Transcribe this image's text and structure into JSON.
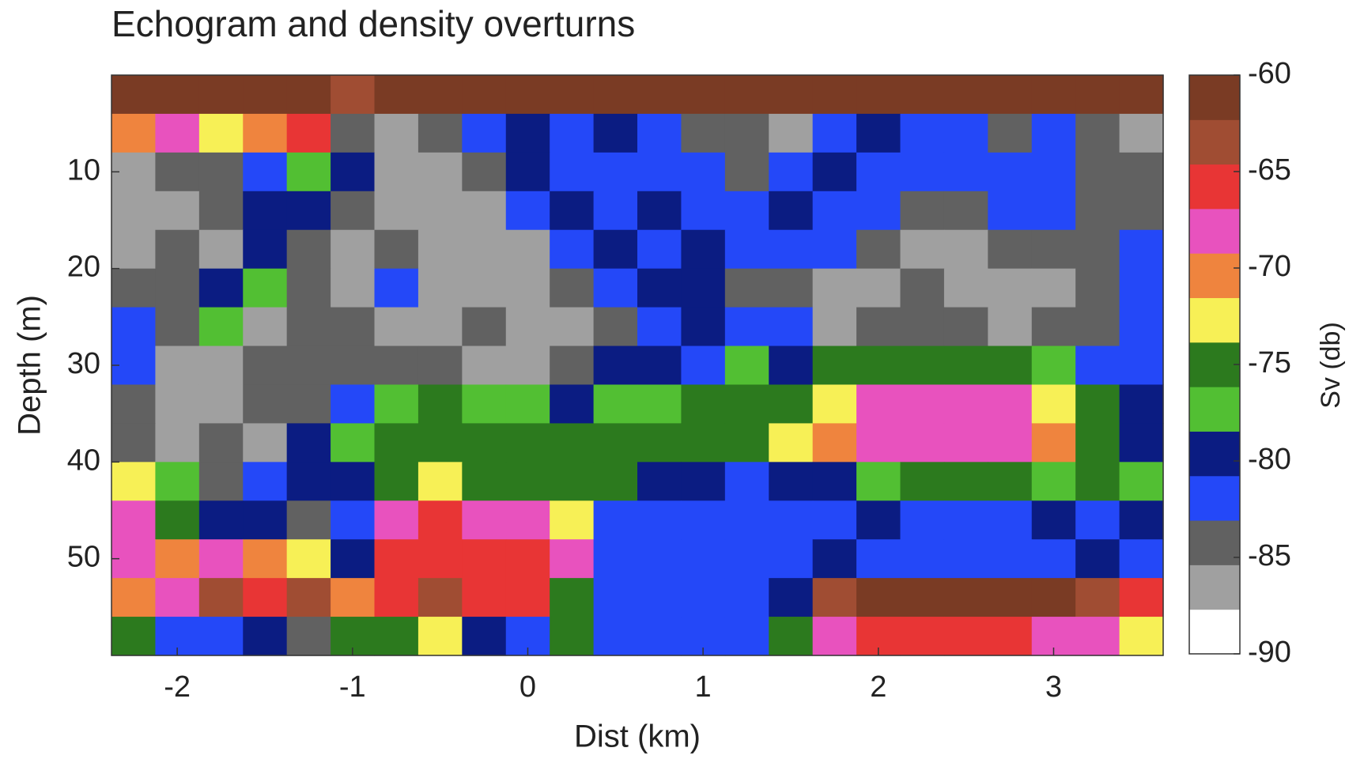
{
  "chart_data": {
    "type": "heatmap",
    "title": "Echogram and density overturns",
    "x_label": "Dist (km)",
    "y_label": "Depth (m)",
    "colorbar_label": "Sv (db)",
    "xlim": [
      -2.375,
      3.625
    ],
    "ylim": [
      0,
      60
    ],
    "y_reversed": true,
    "xticks": [
      -2,
      -1,
      0,
      1,
      2,
      3
    ],
    "yticks": [
      10,
      20,
      30,
      40,
      50
    ],
    "clim": [
      -90,
      -60
    ],
    "cticks": [
      -60,
      -65,
      -70,
      -75,
      -80,
      -85,
      -90
    ],
    "colormap": [
      "#ffffff",
      "#a0a0a0",
      "#616161",
      "#2448f8",
      "#0b1c82",
      "#52bf33",
      "#2c7a1e",
      "#f7f056",
      "#ef843e",
      "#e852be",
      "#e83535",
      "#a04d33",
      "#7a3b24"
    ],
    "x": [
      -2.25,
      -2.0,
      -1.75,
      -1.5,
      -1.25,
      -1.0,
      -0.75,
      -0.5,
      -0.25,
      0.0,
      0.25,
      0.5,
      0.75,
      1.0,
      1.25,
      1.5,
      1.75,
      2.0,
      2.25,
      2.5,
      2.75,
      3.0,
      3.25,
      3.5
    ],
    "y": [
      2,
      6,
      10,
      14,
      18,
      22,
      26,
      30,
      34,
      38,
      42,
      46,
      50,
      54,
      58
    ],
    "z": [
      [
        -62,
        -61,
        -61,
        -62,
        -61,
        -63,
        -62,
        -62,
        -61,
        -61,
        -62,
        -61,
        -62,
        -61,
        -61,
        -62,
        -61,
        -62,
        -61,
        -61,
        -62,
        -61,
        -62,
        -61
      ],
      [
        -70,
        -68,
        -72,
        -70,
        -66,
        -84,
        -86,
        -85,
        -82,
        -80,
        -81,
        -80,
        -82,
        -84,
        -85,
        -86,
        -82,
        -80,
        -82,
        -81,
        -84,
        -83,
        -85,
        -86
      ],
      [
        -86,
        -85,
        -84,
        -83,
        -78,
        -80,
        -86,
        -86,
        -85,
        -80,
        -82,
        -82,
        -81,
        -82,
        -84,
        -82,
        -80,
        -81,
        -83,
        -82,
        -82,
        -81,
        -84,
        -85
      ],
      [
        -86,
        -86,
        -85,
        -79,
        -80,
        -85,
        -86,
        -87,
        -86,
        -81,
        -80,
        -81,
        -80,
        -82,
        -82,
        -80,
        -81,
        -82,
        -84,
        -84,
        -82,
        -83,
        -84,
        -85
      ],
      [
        -86,
        -85,
        -86,
        -80,
        -85,
        -86,
        -84,
        -86,
        -87,
        -86,
        -82,
        -80,
        -81,
        -80,
        -81,
        -82,
        -83,
        -85,
        -86,
        -86,
        -85,
        -84,
        -84,
        -82
      ],
      [
        -85,
        -84,
        -80,
        -78,
        -85,
        -86,
        -83,
        -86,
        -86,
        -86,
        -84,
        -81,
        -80,
        -80,
        -84,
        -85,
        -86,
        -86,
        -85,
        -86,
        -87,
        -86,
        -85,
        -83
      ],
      [
        -83,
        -85,
        -78,
        -86,
        -85,
        -85,
        -86,
        -86,
        -85,
        -86,
        -86,
        -84,
        -81,
        -80,
        -82,
        -83,
        -86,
        -85,
        -84,
        -85,
        -86,
        -85,
        -84,
        -83
      ],
      [
        -82,
        -86,
        -86,
        -85,
        -84,
        -85,
        -84,
        -85,
        -86,
        -86,
        -84,
        -80,
        -80,
        -81,
        -78,
        -79,
        -76,
        -75,
        -75,
        -75,
        -76,
        -78,
        -81,
        -82
      ],
      [
        -84,
        -86,
        -86,
        -85,
        -84,
        -81,
        -78,
        -76,
        -78,
        -77,
        -80,
        -78,
        -77,
        -76,
        -76,
        -74,
        -72,
        -69,
        -69,
        -67,
        -69,
        -72,
        -76,
        -80
      ],
      [
        -84,
        -86,
        -85,
        -86,
        -80,
        -78,
        -76,
        -75,
        -74,
        -75,
        -76,
        -75,
        -76,
        -75,
        -74,
        -73,
        -71,
        -68,
        -68,
        -67,
        -68,
        -70,
        -74,
        -79
      ],
      [
        -72,
        -78,
        -84,
        -82,
        -80,
        -79,
        -74,
        -73,
        -74,
        -75,
        -76,
        -76,
        -80,
        -80,
        -81,
        -80,
        -80,
        -77,
        -76,
        -76,
        -76,
        -77,
        -76,
        -78
      ],
      [
        -68,
        -74,
        -79,
        -80,
        -84,
        -82,
        -68,
        -66,
        -67,
        -68,
        -72,
        -82,
        -81,
        -81,
        -82,
        -81,
        -81,
        -80,
        -81,
        -81,
        -81,
        -80,
        -81,
        -80
      ],
      [
        -67,
        -70,
        -68,
        -70,
        -72,
        -80,
        -66,
        -65,
        -65,
        -66,
        -67,
        -82,
        -81,
        -82,
        -81,
        -81,
        -80,
        -81,
        -82,
        -81,
        -81,
        -81,
        -80,
        -81
      ],
      [
        -70,
        -68,
        -64,
        -65,
        -64,
        -70,
        -65,
        -64,
        -66,
        -65,
        -74,
        -81,
        -82,
        -81,
        -82,
        -80,
        -63,
        -61,
        -61,
        -61,
        -61,
        -62,
        -63,
        -66
      ],
      [
        -74,
        -82,
        -82,
        -80,
        -84,
        -76,
        -74,
        -73,
        -80,
        -82,
        -76,
        -81,
        -82,
        -82,
        -81,
        -74,
        -67,
        -66,
        -66,
        -65,
        -66,
        -67,
        -68,
        -72
      ]
    ]
  }
}
